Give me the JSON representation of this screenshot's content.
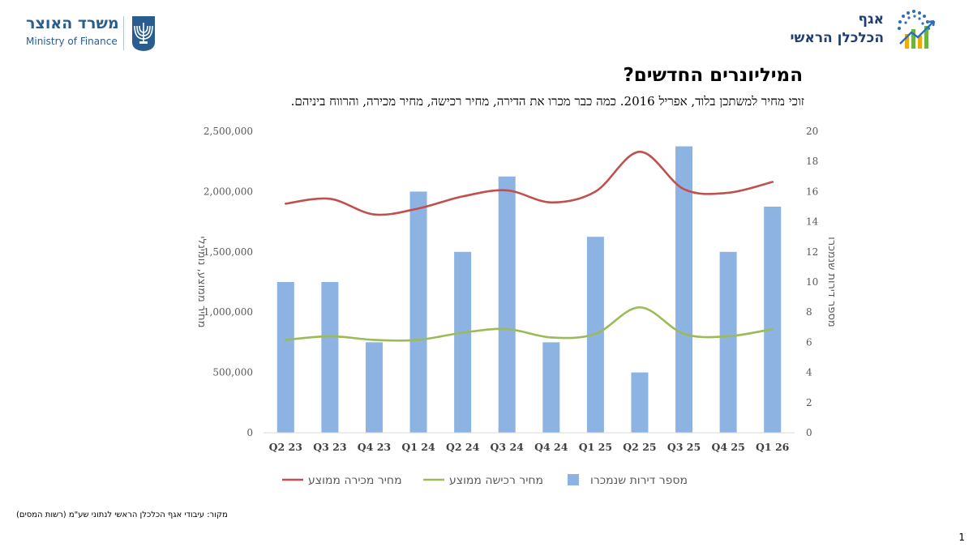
{
  "header": {
    "mof_hebrew": "משרד האוצר",
    "mof_english": "Ministry of Finance",
    "chief_economist_line1": "אגף",
    "chief_economist_line2": "הכלכלן הראשי"
  },
  "title": "המיליונרים החדשים?",
  "subtitle": "זוכי מחיר למשתכן בלוד, אפריל 2016. כמה כבר מכרו את הדירה, מחיר רכישה, מחיר מכירה, והרווח ביניהם.",
  "source_note": "מקור: עיבודי אגף הכלכלן הראשי לנתוני שע\"מ (רשות המסים)",
  "page_number": "1",
  "colors": {
    "bars": "#8db3e2",
    "sale_line": "#c0504d",
    "purchase_line": "#9bbb59",
    "axis_text": "#595959",
    "gridline": "#d9d9d9"
  },
  "chart_data": {
    "type": "bar",
    "categories": [
      "Q2 23",
      "Q3 23",
      "Q4 23",
      "Q1 24",
      "Q2 24",
      "Q3 24",
      "Q4 24",
      "Q1 25",
      "Q2 25",
      "Q3 25",
      "Q4 25",
      "Q1 26"
    ],
    "series": [
      {
        "name": "מספר דירות שנמכרו",
        "type": "bar",
        "axis": "right",
        "values": [
          10,
          10,
          6,
          16,
          12,
          17,
          6,
          13,
          4,
          19,
          12,
          15
        ]
      },
      {
        "name": "מחיר מכירה ממוצע",
        "type": "line",
        "axis": "left",
        "values": [
          1900000,
          1940000,
          1810000,
          1860000,
          1960000,
          2010000,
          1910000,
          2000000,
          2330000,
          2020000,
          1990000,
          2080000
        ]
      },
      {
        "name": "מחיר רכישה ממוצע",
        "type": "line",
        "axis": "left",
        "values": [
          770000,
          800000,
          770000,
          770000,
          830000,
          860000,
          790000,
          820000,
          1040000,
          820000,
          800000,
          860000
        ]
      }
    ],
    "ylabel_left": "מחיר ממוצע, נומינלי",
    "ylabel_right": "מספר דירות שנמכרו",
    "ylim_left": [
      0,
      2500000
    ],
    "yticks_left": [
      "0",
      "500,000",
      "1,000,000",
      "1,500,000",
      "2,000,000",
      "2,500,000"
    ],
    "ylim_right": [
      0,
      20
    ],
    "yticks_right": [
      "0",
      "2",
      "4",
      "6",
      "8",
      "10",
      "12",
      "14",
      "16",
      "18",
      "20"
    ],
    "legend": {
      "position": "bottom",
      "items": [
        {
          "label": "מחיר מכירה ממוצע",
          "kind": "line"
        },
        {
          "label": "מחיר רכישה ממוצע",
          "kind": "line"
        },
        {
          "label": "מספר דירות שנמכרו",
          "kind": "bar"
        }
      ]
    },
    "grid": false
  }
}
